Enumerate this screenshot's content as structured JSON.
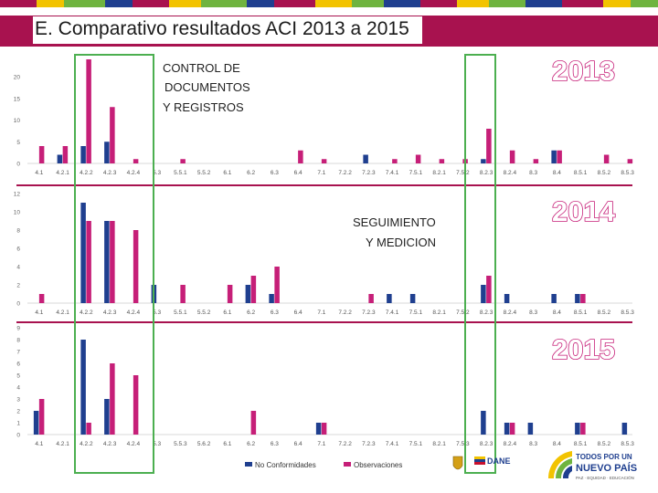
{
  "slide_title": "E. Comparativo resultados ACI 2013 a 2015",
  "colors": {
    "no_conformidades": "#1f3f8f",
    "observaciones": "#c61f78",
    "highlight_box": "#4caf50",
    "title_band": "#a8124f",
    "separator": "#a8124f"
  },
  "annotations": {
    "control_line1": "CONTROL DE",
    "control_line2": "DOCUMENTOS",
    "control_line3": "Y REGISTROS",
    "seguimiento_line1": "SEGUIMIENTO",
    "seguimiento_line2": "Y MEDICION"
  },
  "legend": {
    "no_conformidades": "No Conformidades",
    "observaciones": "Observaciones"
  },
  "logos": {
    "dane": "DANE",
    "gov_line1": "TODOS POR UN",
    "gov_line2": "NUEVO PAÍS",
    "gov_line3": "PAZ · EQUIDAD · EDUCACIÓN"
  },
  "chart_data": [
    {
      "type": "bar",
      "title": "2013",
      "categories": [
        "4.1",
        "4.2.1",
        "4.2.2",
        "4.2.3",
        "4.2.4",
        "5.3",
        "5.5.1",
        "5.5.2",
        "6.1",
        "6.2",
        "6.3",
        "6.4",
        "7.1",
        "7.2.2",
        "7.2.3",
        "7.4.1",
        "7.5.1",
        "8.2.1",
        "7.5.2",
        "8.2.3",
        "8.2.4",
        "8.3",
        "8.4",
        "8.5.1",
        "8.5.2",
        "8.5.3"
      ],
      "ylim": [
        0,
        24
      ],
      "yticks": [
        0,
        5,
        10,
        15,
        20
      ],
      "series": [
        {
          "name": "No Conformidades",
          "values": [
            0,
            2,
            4,
            5,
            0,
            0,
            0,
            0,
            0,
            0,
            0,
            0,
            0,
            0,
            2,
            0,
            0,
            0,
            0,
            1,
            0,
            0,
            3,
            0,
            0,
            0
          ]
        },
        {
          "name": "Observaciones",
          "values": [
            4,
            4,
            24,
            13,
            1,
            0,
            1,
            0,
            0,
            0,
            0,
            3,
            1,
            0,
            0,
            1,
            2,
            1,
            1,
            8,
            3,
            1,
            3,
            0,
            2,
            1
          ]
        }
      ]
    },
    {
      "type": "bar",
      "title": "2014",
      "categories": [
        "4.1",
        "4.2.1",
        "4.2.2",
        "4.2.3",
        "4.2.4",
        "5.3",
        "5.5.1",
        "5.5.2",
        "6.1",
        "6.2",
        "6.3",
        "6.4",
        "7.1",
        "7.2.2",
        "7.2.3",
        "7.4.1",
        "7.5.1",
        "8.2.1",
        "7.5.2",
        "8.2.3",
        "8.2.4",
        "8.3",
        "8.4",
        "8.5.1",
        "8.5.2",
        "8.5.3"
      ],
      "ylim": [
        0,
        12
      ],
      "yticks": [
        0,
        2,
        4,
        6,
        8,
        10,
        12
      ],
      "series": [
        {
          "name": "No Conformidades",
          "values": [
            0,
            0,
            11,
            9,
            0,
            2,
            0,
            0,
            0,
            2,
            1,
            0,
            0,
            0,
            0,
            1,
            1,
            0,
            0,
            2,
            1,
            0,
            1,
            1,
            0,
            0
          ]
        },
        {
          "name": "Observaciones",
          "values": [
            1,
            0,
            9,
            9,
            8,
            0,
            2,
            0,
            2,
            3,
            4,
            0,
            0,
            0,
            1,
            0,
            0,
            0,
            0,
            3,
            0,
            0,
            0,
            1,
            0,
            0
          ]
        }
      ]
    },
    {
      "type": "bar",
      "title": "2015",
      "categories": [
        "4.1",
        "4.2.1",
        "4.2.2",
        "4.2.3",
        "4.2.4",
        "5.3",
        "5.5.3",
        "5.6.2",
        "6.1",
        "6.2",
        "6.3",
        "6.4",
        "7.1",
        "7.2.2",
        "7.2.3",
        "7.4.1",
        "7.5.1",
        "8.2.1",
        "7.5.3",
        "8.2.3",
        "8.2.4",
        "8.3",
        "8.4",
        "8.5.1",
        "8.5.2",
        "8.5.3"
      ],
      "ylim": [
        0,
        9
      ],
      "yticks": [
        0,
        1,
        2,
        3,
        4,
        5,
        6,
        7,
        8,
        9
      ],
      "series": [
        {
          "name": "No Conformidades",
          "values": [
            2,
            0,
            8,
            3,
            0,
            0,
            0,
            0,
            0,
            0,
            0,
            0,
            1,
            0,
            0,
            0,
            0,
            0,
            0,
            2,
            1,
            1,
            0,
            1,
            0,
            1
          ]
        },
        {
          "name": "Observaciones",
          "values": [
            3,
            0,
            1,
            6,
            5,
            0,
            0,
            0,
            0,
            2,
            0,
            0,
            1,
            0,
            0,
            0,
            0,
            0,
            0,
            0,
            1,
            0,
            0,
            1,
            0,
            0
          ]
        }
      ]
    }
  ]
}
